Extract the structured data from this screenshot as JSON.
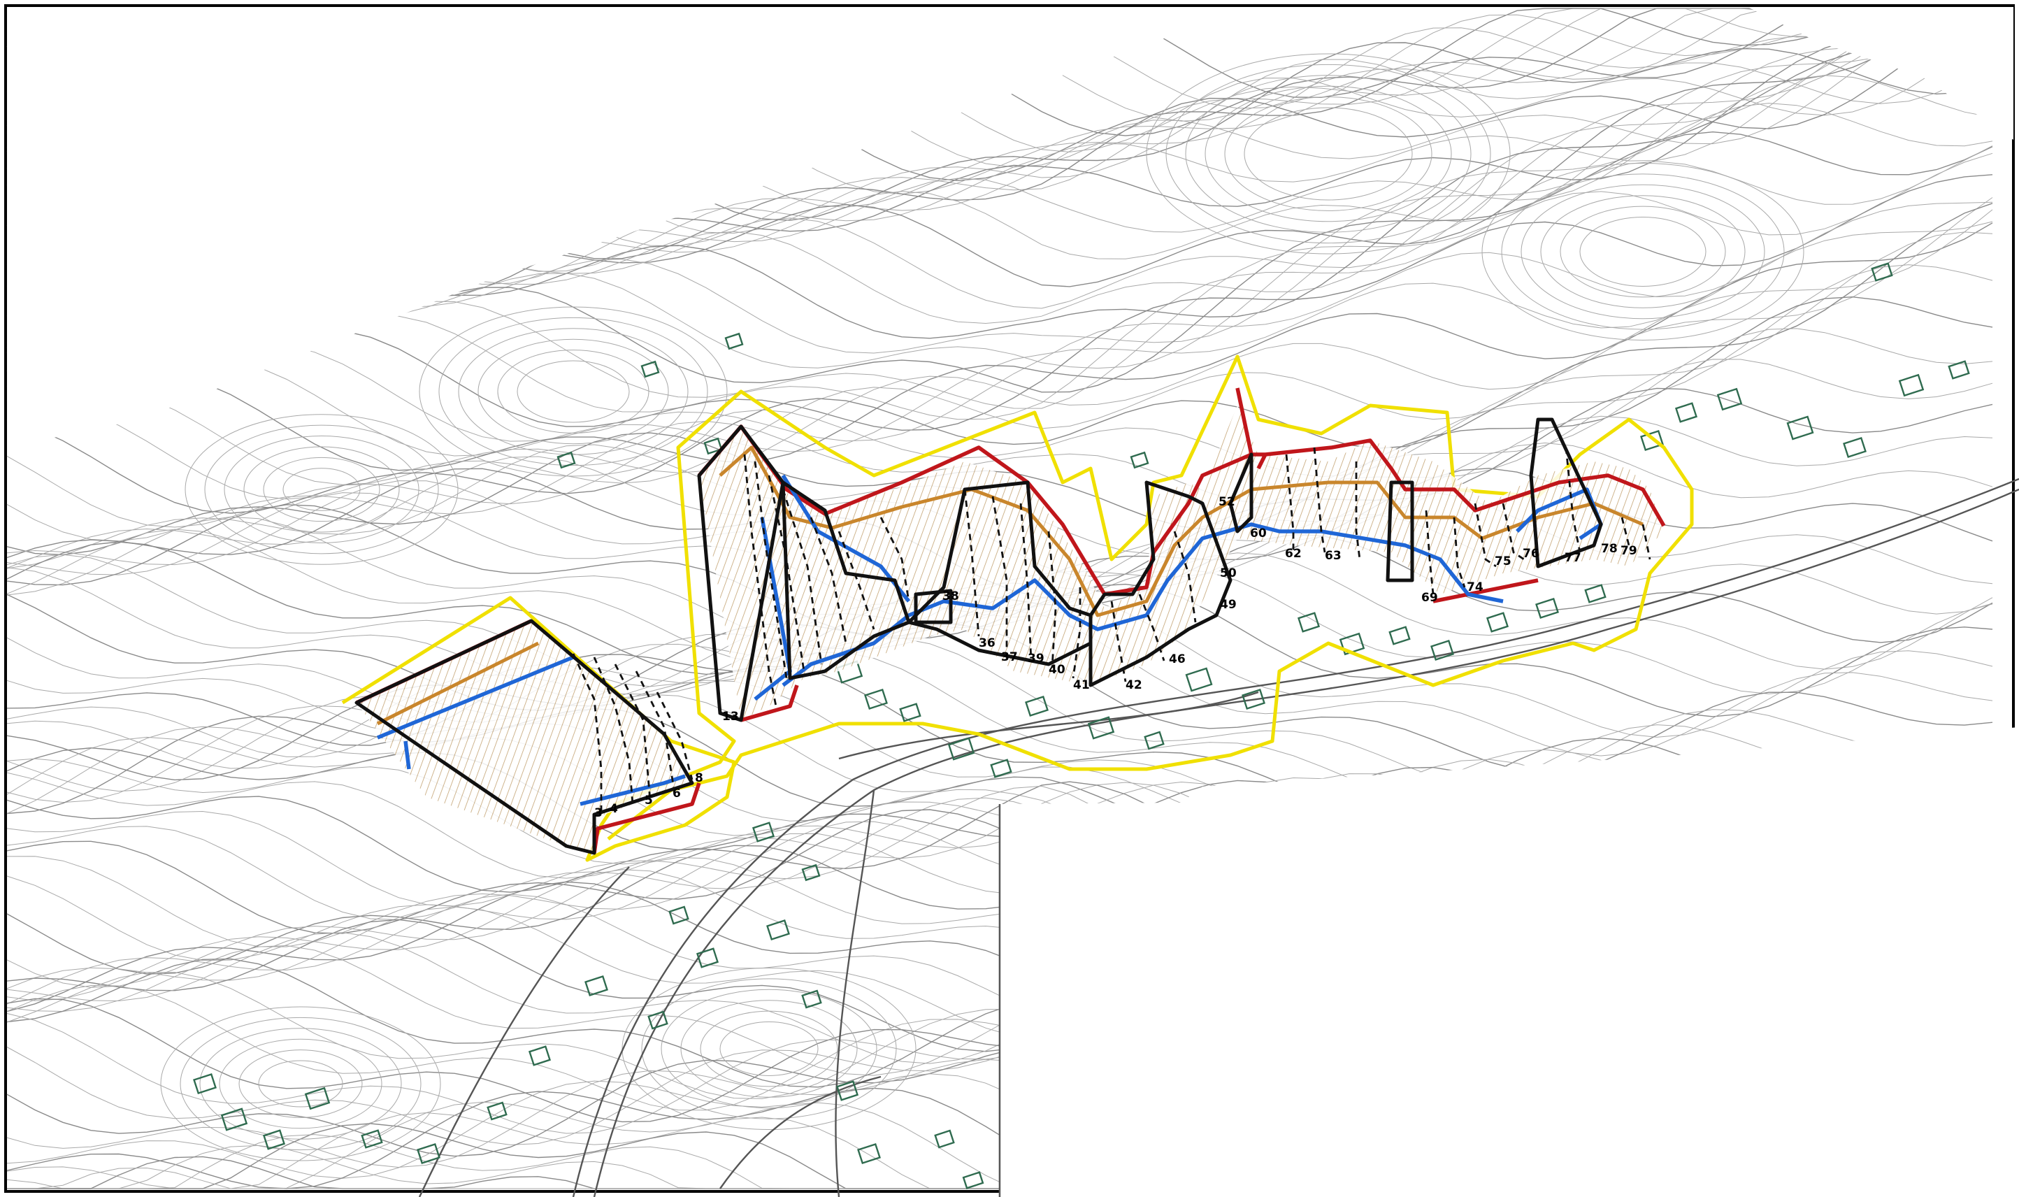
{
  "map": {
    "section_labels": [
      {
        "id": "s3",
        "text": "3"
      },
      {
        "id": "s4",
        "text": "4"
      },
      {
        "id": "s5",
        "text": "5"
      },
      {
        "id": "s6",
        "text": "6"
      },
      {
        "id": "s8",
        "text": "8"
      },
      {
        "id": "s13",
        "text": "13"
      },
      {
        "id": "s38",
        "text": "38"
      },
      {
        "id": "s36",
        "text": "36"
      },
      {
        "id": "s37",
        "text": "37"
      },
      {
        "id": "s39",
        "text": "39"
      },
      {
        "id": "s40",
        "text": "40"
      },
      {
        "id": "s41",
        "text": "41"
      },
      {
        "id": "s42",
        "text": "42"
      },
      {
        "id": "s46",
        "text": "46"
      },
      {
        "id": "s49",
        "text": "49"
      },
      {
        "id": "s50",
        "text": "50"
      },
      {
        "id": "s52",
        "text": "52"
      },
      {
        "id": "s60",
        "text": "60"
      },
      {
        "id": "s62",
        "text": "62"
      },
      {
        "id": "s63",
        "text": "63"
      },
      {
        "id": "s69",
        "text": "69"
      },
      {
        "id": "s74",
        "text": "74"
      },
      {
        "id": "s75",
        "text": "75"
      },
      {
        "id": "s76",
        "text": "76"
      },
      {
        "id": "s77",
        "text": "77"
      },
      {
        "id": "s78",
        "text": "78"
      },
      {
        "id": "s79",
        "text": "79"
      }
    ],
    "colors": {
      "boundary_yellow": "#f0e000",
      "line_red": "#c0161b",
      "line_orange": "#c9862c",
      "line_blue": "#1f66d6",
      "line_black": "#111111",
      "contour_gray": "#8a8a8a",
      "building_green": "#2f6b4f"
    }
  }
}
